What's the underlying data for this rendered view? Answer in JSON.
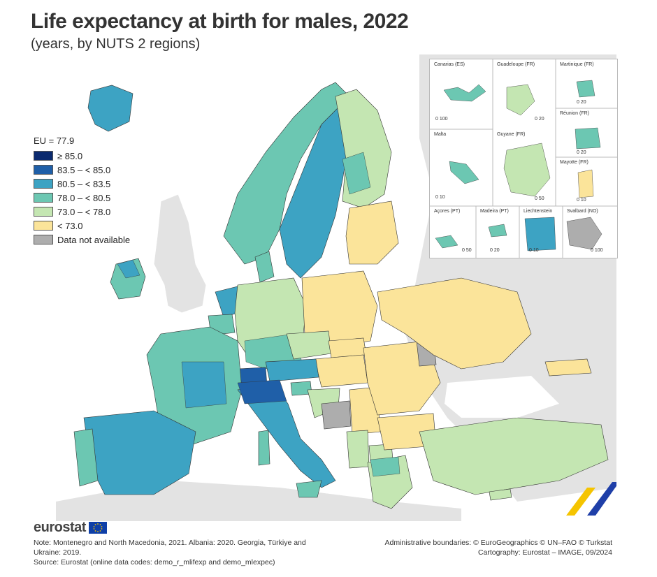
{
  "title": "Life expectancy at birth for males, 2022",
  "subtitle": "(years, by NUTS 2 regions)",
  "legend": {
    "eu_label": "EU = 77.9",
    "items": [
      {
        "label": "≥ 85.0",
        "color": "#0b2a6f"
      },
      {
        "label": "83.5 – < 85.0",
        "color": "#1f5fa8"
      },
      {
        "label": "80.5 – < 83.5",
        "color": "#3da3c3"
      },
      {
        "label": "78.0 – < 80.5",
        "color": "#6cc7b2"
      },
      {
        "label": "73.0 – < 78.0",
        "color": "#c4e6b2"
      },
      {
        "label": "< 73.0",
        "color": "#fbe49a"
      },
      {
        "label": "Data not available",
        "color": "#adadad"
      }
    ]
  },
  "insets": [
    {
      "name": "Canarias (ES)",
      "scale": "0 100"
    },
    {
      "name": "Guadeloupe (FR)",
      "scale": "0 20"
    },
    {
      "name": "Martinique (FR)",
      "scale": "0 20"
    },
    {
      "name": "Réunion (FR)",
      "scale": "0 20"
    },
    {
      "name": "Malta",
      "scale": "0 10"
    },
    {
      "name": "Guyane (FR)",
      "scale": "0 50"
    },
    {
      "name": "Mayotte (FR)",
      "scale": "0 10"
    },
    {
      "name": "Açores (PT)",
      "scale": "0 50"
    },
    {
      "name": "Madeira (PT)",
      "scale": "0 20"
    },
    {
      "name": "Liechtenstein",
      "scale": "0 10"
    },
    {
      "name": "Svalbard (NO)",
      "scale": "0 100"
    }
  ],
  "logo": {
    "text": "eurostat"
  },
  "note": {
    "line1": "Note: Montenegro and North Macedonia, 2021. Albania: 2020. Georgia, Türkiye and Ukraine: 2019.",
    "line2": "Source: Eurostat (online data codes: demo_r_mlifexp and demo_mlexpec)"
  },
  "credits": {
    "line1": "Administrative boundaries: © EuroGeographics © UN–FAO © Turkstat",
    "line2": "Cartography: Eurostat – IMAGE, 09/2024"
  }
}
